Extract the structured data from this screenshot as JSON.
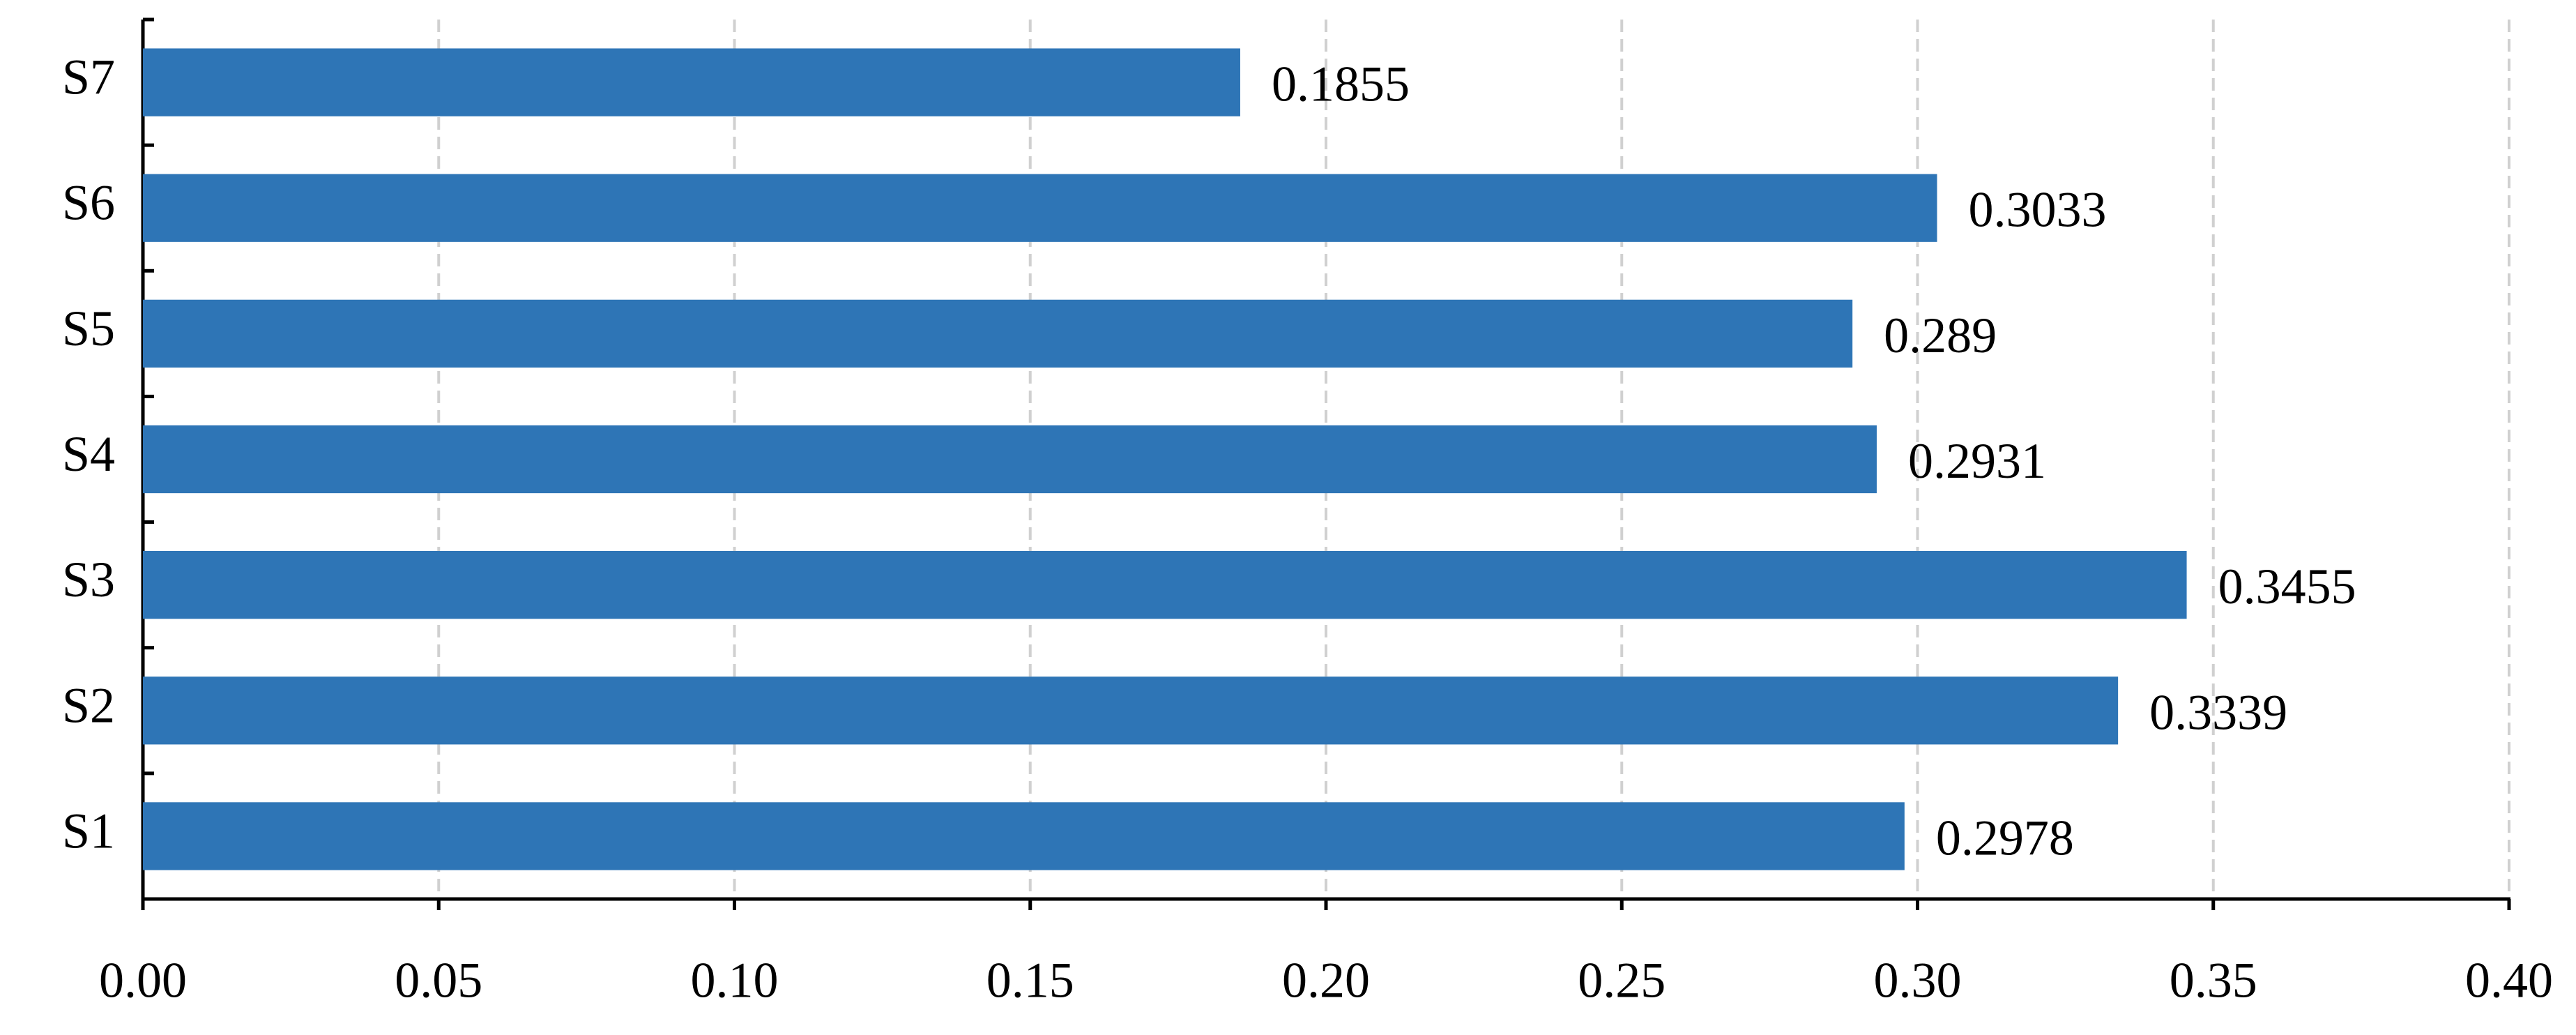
{
  "chart_data": {
    "type": "hbar",
    "categories": [
      "S1",
      "S2",
      "S3",
      "S4",
      "S5",
      "S6",
      "S7"
    ],
    "values": [
      0.2978,
      0.3339,
      0.3455,
      0.2931,
      0.289,
      0.3033,
      0.1855
    ],
    "color": "#2e75b6",
    "xlim": [
      0,
      0.4
    ],
    "xticks": [
      {
        "value": 0,
        "label": "0.00"
      },
      {
        "value": 0.05,
        "label": "0.05"
      },
      {
        "value": 0.1,
        "label": "0.10"
      },
      {
        "value": 0.15,
        "label": "0.15"
      },
      {
        "value": 0.2,
        "label": "0.20"
      },
      {
        "value": 0.25,
        "label": "0.25"
      },
      {
        "value": 0.3,
        "label": "0.30"
      },
      {
        "value": 0.35,
        "label": "0.35"
      },
      {
        "value": 0.4,
        "label": "0.40"
      }
    ],
    "grid": true
  }
}
